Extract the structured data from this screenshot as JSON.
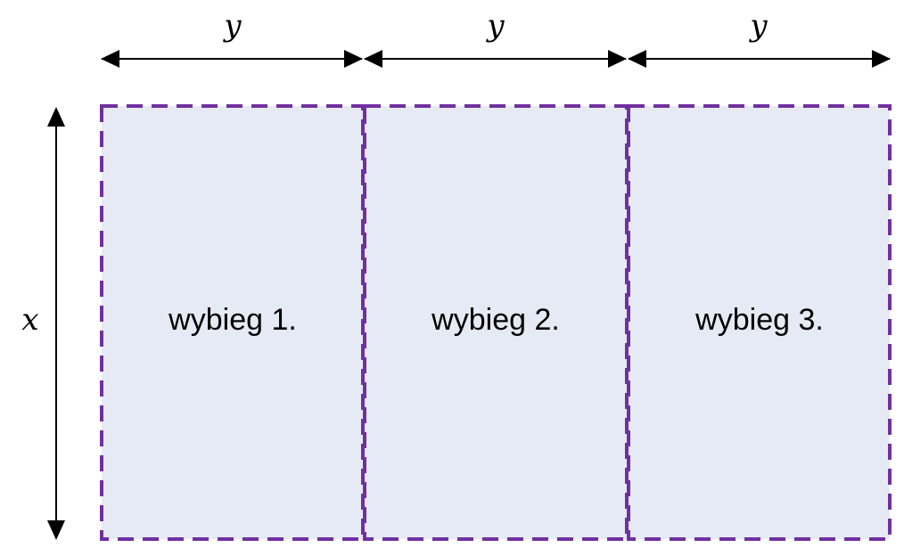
{
  "dimensions": {
    "width_label": "y",
    "height_label": "x"
  },
  "pens": [
    {
      "label": "wybieg 1."
    },
    {
      "label": "wybieg 2."
    },
    {
      "label": "wybieg 3."
    }
  ],
  "colors": {
    "fill": "#e6eaf4",
    "border": "#7030a0",
    "arrow": "#000000"
  }
}
